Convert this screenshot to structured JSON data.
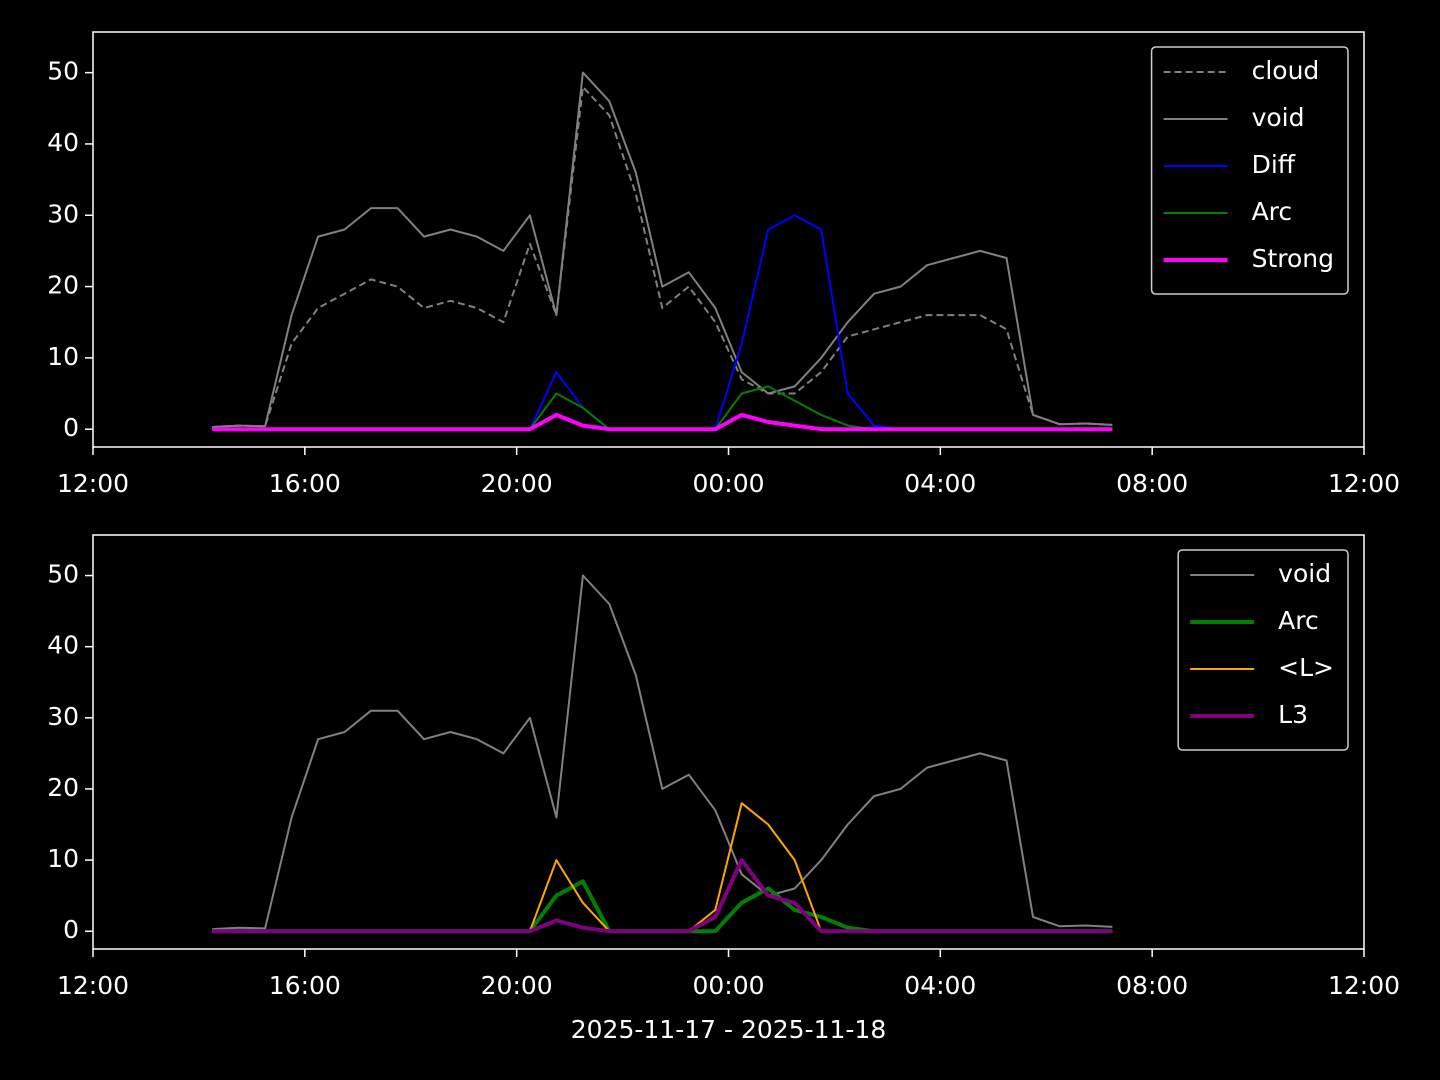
{
  "chart_data": [
    {
      "type": "line",
      "x": [
        2.25,
        2.75,
        3.25,
        3.75,
        4.25,
        4.75,
        5.25,
        5.75,
        6.25,
        6.75,
        7.25,
        7.75,
        8.25,
        8.75,
        9.25,
        9.75,
        10.25,
        10.75,
        11.25,
        11.75,
        12.25,
        12.75,
        13.25,
        13.75,
        14.25,
        14.75,
        15.25,
        15.75,
        16.25,
        16.75,
        17.25,
        17.75,
        18.25,
        18.75,
        19.25
      ],
      "series": [
        {
          "name": "cloud",
          "color": "#808080",
          "linestyle": "dashed",
          "linewidth": 2,
          "values": [
            0.3,
            0.5,
            0.4,
            12,
            17,
            19,
            21,
            20,
            17,
            18,
            17,
            15,
            26,
            16,
            48,
            44,
            33,
            17,
            20,
            15,
            7,
            5,
            5,
            8,
            13,
            14,
            15,
            16,
            16,
            16,
            14,
            2,
            0.7,
            0.8,
            0.6
          ]
        },
        {
          "name": "void",
          "color": "#808080",
          "linestyle": "solid",
          "linewidth": 2,
          "values": [
            0.3,
            0.5,
            0.4,
            16,
            27,
            28,
            31,
            31,
            27,
            28,
            27,
            25,
            30,
            16,
            50,
            46,
            36,
            20,
            22,
            17,
            8,
            5,
            6,
            10,
            15,
            19,
            20,
            23,
            24,
            25,
            24,
            2,
            0.7,
            0.8,
            0.6
          ]
        },
        {
          "name": "Diff",
          "color": "#0000ff",
          "linestyle": "solid",
          "linewidth": 2,
          "values": [
            0,
            0,
            0,
            0,
            0,
            0,
            0,
            0,
            0,
            0,
            0,
            0,
            0,
            8,
            3,
            0,
            0,
            0,
            0,
            0,
            12,
            28,
            30,
            28,
            5,
            0.5,
            0,
            0,
            0,
            0,
            0,
            0,
            0,
            0,
            0
          ]
        },
        {
          "name": "Arc",
          "color": "#008000",
          "linestyle": "solid",
          "linewidth": 2,
          "values": [
            0,
            0,
            0,
            0,
            0,
            0,
            0,
            0,
            0,
            0,
            0,
            0,
            0,
            5,
            3,
            0,
            0,
            0,
            0,
            0,
            5,
            6,
            4,
            2,
            0.5,
            0,
            0,
            0,
            0,
            0,
            0,
            0,
            0,
            0,
            0
          ]
        },
        {
          "name": "Strong",
          "color": "#ff00ff",
          "linestyle": "solid",
          "linewidth": 4,
          "values": [
            0,
            0,
            0,
            0,
            0,
            0,
            0,
            0,
            0,
            0,
            0,
            0,
            0,
            2,
            0.5,
            0,
            0,
            0,
            0,
            0,
            2,
            1,
            0.5,
            0,
            0,
            0,
            0,
            0,
            0,
            0,
            0,
            0,
            0,
            0,
            0
          ]
        }
      ],
      "xlim": [
        0,
        24
      ],
      "xticks": [
        {
          "value": 0,
          "label": "12:00"
        },
        {
          "value": 4,
          "label": "16:00"
        },
        {
          "value": 8,
          "label": "20:00"
        },
        {
          "value": 12,
          "label": "00:00"
        },
        {
          "value": 16,
          "label": "04:00"
        },
        {
          "value": 20,
          "label": "08:00"
        },
        {
          "value": 24,
          "label": "12:00"
        }
      ],
      "ylim": [
        -2.5,
        55.7
      ],
      "yticks": [
        0,
        10,
        20,
        30,
        40,
        50
      ],
      "legend": "upper right"
    },
    {
      "type": "line",
      "x": [
        2.25,
        2.75,
        3.25,
        3.75,
        4.25,
        4.75,
        5.25,
        5.75,
        6.25,
        6.75,
        7.25,
        7.75,
        8.25,
        8.75,
        9.25,
        9.75,
        10.25,
        10.75,
        11.25,
        11.75,
        12.25,
        12.75,
        13.25,
        13.75,
        14.25,
        14.75,
        15.25,
        15.75,
        16.25,
        16.75,
        17.25,
        17.75,
        18.25,
        18.75,
        19.25
      ],
      "series": [
        {
          "name": "void",
          "color": "#808080",
          "linestyle": "solid",
          "linewidth": 2,
          "values": [
            0.3,
            0.5,
            0.4,
            16,
            27,
            28,
            31,
            31,
            27,
            28,
            27,
            25,
            30,
            16,
            50,
            46,
            36,
            20,
            22,
            17,
            8,
            5,
            6,
            10,
            15,
            19,
            20,
            23,
            24,
            25,
            24,
            2,
            0.7,
            0.8,
            0.6
          ]
        },
        {
          "name": "Arc",
          "color": "#008000",
          "linestyle": "solid",
          "linewidth": 4,
          "values": [
            0,
            0,
            0,
            0,
            0,
            0,
            0,
            0,
            0,
            0,
            0,
            0,
            0,
            5,
            7,
            0,
            0,
            0,
            0,
            0,
            4,
            6,
            3,
            2,
            0.5,
            0,
            0,
            0,
            0,
            0,
            0,
            0,
            0,
            0,
            0
          ]
        },
        {
          "name": "<L>",
          "color": "#ffa500",
          "linestyle": "solid",
          "linewidth": 2,
          "values": [
            0,
            0,
            0,
            0,
            0,
            0,
            0,
            0,
            0,
            0,
            0,
            0,
            0,
            10,
            4,
            0,
            0,
            0,
            0,
            3,
            18,
            15,
            10,
            0,
            0,
            0,
            0,
            0,
            0,
            0,
            0,
            0,
            0,
            0,
            0
          ]
        },
        {
          "name": "L3",
          "color": "#800080",
          "linestyle": "solid",
          "linewidth": 4,
          "values": [
            0,
            0,
            0,
            0,
            0,
            0,
            0,
            0,
            0,
            0,
            0,
            0,
            0,
            1.5,
            0.5,
            0,
            0,
            0,
            0,
            2,
            10,
            5,
            4,
            0,
            0,
            0,
            0,
            0,
            0,
            0,
            0,
            0,
            0,
            0,
            0
          ]
        }
      ],
      "xlim": [
        0,
        24
      ],
      "xticks": [
        {
          "value": 0,
          "label": "12:00"
        },
        {
          "value": 4,
          "label": "16:00"
        },
        {
          "value": 8,
          "label": "20:00"
        },
        {
          "value": 12,
          "label": "00:00"
        },
        {
          "value": 16,
          "label": "04:00"
        },
        {
          "value": 20,
          "label": "08:00"
        },
        {
          "value": 24,
          "label": "12:00"
        }
      ],
      "ylim": [
        -2.5,
        55.7
      ],
      "yticks": [
        0,
        10,
        20,
        30,
        40,
        50
      ],
      "legend": "upper right",
      "xlabel": "2025-11-17 - 2025-11-18"
    }
  ]
}
